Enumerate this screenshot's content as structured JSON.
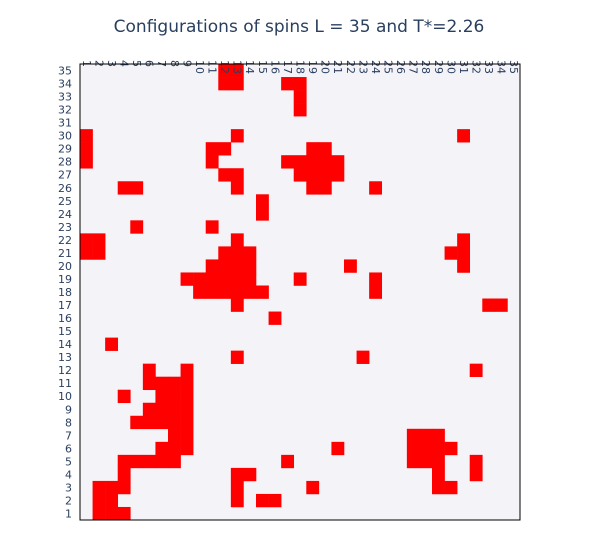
{
  "chart_data": {
    "type": "heatmap",
    "title": "Configurations of spins L = 35 and T*=2.26",
    "x_ticks": [
      "1",
      "2",
      "3",
      "4",
      "5",
      "6",
      "7",
      "8",
      "9",
      "10",
      "11",
      "12",
      "13",
      "14",
      "15",
      "16",
      "17",
      "18",
      "19",
      "20",
      "21",
      "22",
      "23",
      "24",
      "25",
      "26",
      "27",
      "28",
      "29",
      "30",
      "31",
      "32",
      "33",
      "34",
      "35"
    ],
    "y_ticks": [
      "1",
      "2",
      "3",
      "4",
      "5",
      "6",
      "7",
      "8",
      "9",
      "10",
      "11",
      "12",
      "13",
      "14",
      "15",
      "16",
      "17",
      "18",
      "19",
      "20",
      "21",
      "22",
      "23",
      "24",
      "25",
      "26",
      "27",
      "28",
      "29",
      "30",
      "31",
      "32",
      "33",
      "34",
      "35"
    ],
    "xlim": [
      1,
      35
    ],
    "ylim": [
      1,
      35
    ],
    "colors": {
      "up": "#ff0000",
      "down": "#f4f3f8",
      "background": "#ffffff",
      "text": "#2a3f5f",
      "frame": "#000000"
    },
    "up_cells": {
      "35": [
        12,
        13
      ],
      "34": [
        12,
        13,
        17,
        18
      ],
      "33": [
        18
      ],
      "32": [
        18
      ],
      "30": [
        1,
        13,
        31
      ],
      "29": [
        1,
        11,
        12,
        19,
        20
      ],
      "28": [
        1,
        11,
        17,
        18,
        19,
        20,
        21
      ],
      "27": [
        12,
        13,
        18,
        19,
        20,
        21
      ],
      "26": [
        4,
        5,
        13,
        19,
        20,
        24
      ],
      "25": [
        15
      ],
      "24": [
        15
      ],
      "23": [
        5,
        11
      ],
      "22": [
        1,
        2,
        13,
        31
      ],
      "21": [
        1,
        2,
        12,
        13,
        14,
        30,
        31
      ],
      "20": [
        11,
        12,
        13,
        14,
        22,
        31
      ],
      "19": [
        9,
        10,
        11,
        12,
        13,
        14,
        18,
        24
      ],
      "18": [
        10,
        11,
        12,
        13,
        14,
        15,
        24
      ],
      "17": [
        13,
        33,
        34
      ],
      "16": [
        16
      ],
      "14": [
        3
      ],
      "13": [
        13,
        23
      ],
      "12": [
        6,
        9,
        32
      ],
      "11": [
        6,
        7,
        8,
        9
      ],
      "10": [
        4,
        7,
        8,
        9
      ],
      "9": [
        6,
        7,
        8,
        9
      ],
      "8": [
        5,
        6,
        7,
        8,
        9
      ],
      "7": [
        8,
        9,
        27,
        28,
        29
      ],
      "6": [
        7,
        8,
        9,
        21,
        27,
        28,
        29,
        30
      ],
      "5": [
        4,
        5,
        6,
        7,
        8,
        17,
        27,
        28,
        29,
        32
      ],
      "4": [
        4,
        13,
        14,
        29,
        32
      ],
      "3": [
        2,
        3,
        4,
        13,
        19,
        29,
        30
      ],
      "2": [
        2,
        3,
        13,
        15,
        16
      ],
      "1": [
        2,
        3,
        4
      ]
    }
  }
}
